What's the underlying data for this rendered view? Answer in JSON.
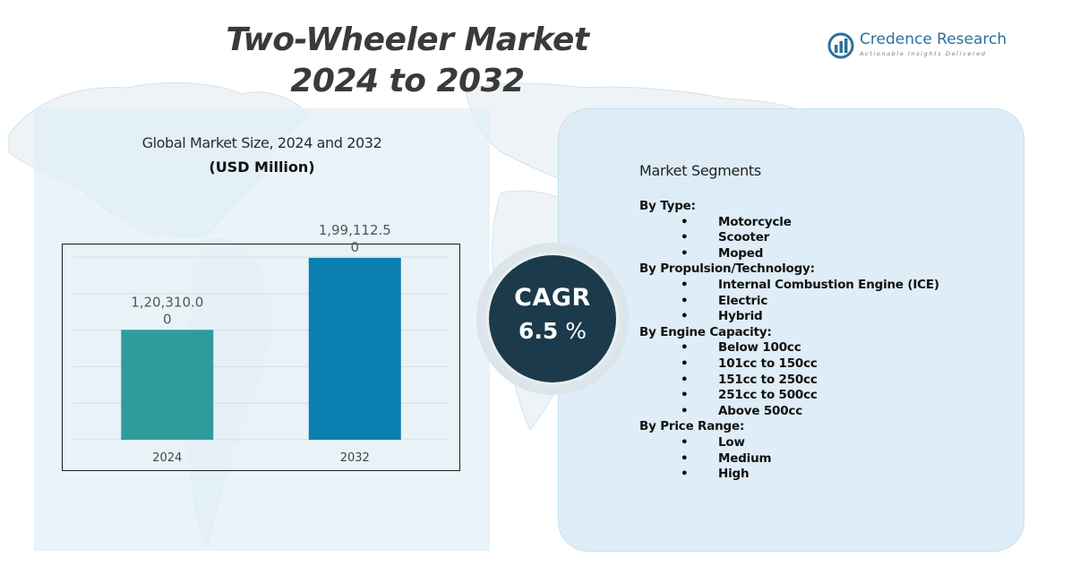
{
  "title_line1": "Two-Wheeler Market",
  "title_line2": "2024 to 2032",
  "brand": {
    "name": "Credence Research",
    "tagline": "Actionable Insights Delivered",
    "color": "#2f6f9b"
  },
  "chart_data": {
    "type": "bar",
    "title": "Global Market Size, 2024 and 2032",
    "unit": "(USD Million)",
    "categories": [
      "2024",
      "2032"
    ],
    "values": [
      120310.0,
      199112.5
    ],
    "value_labels": [
      "1,20,310.00",
      "1,99,112.50"
    ],
    "colors": [
      "#2e9c9c",
      "#0b7fb0"
    ],
    "ylim": [
      0,
      200000
    ],
    "grid": true,
    "xlabel": "",
    "ylabel": ""
  },
  "cagr": {
    "label": "CAGR",
    "value": "6.5",
    "suffix": "%"
  },
  "segments": {
    "heading": "Market Segments",
    "groups": [
      {
        "title": "By Type:",
        "items": [
          "Motorcycle",
          "Scooter",
          "Moped"
        ]
      },
      {
        "title": "By Propulsion/Technology:",
        "items": [
          "Internal Combustion Engine (ICE)",
          "Electric",
          "Hybrid"
        ]
      },
      {
        "title": "By Engine Capacity:",
        "items": [
          "Below 100cc",
          "101cc to 150cc",
          "151cc to 250cc",
          "251cc to 500cc",
          "Above 500cc"
        ]
      },
      {
        "title": "By Price Range:",
        "items": [
          "Low",
          "Medium",
          "High"
        ]
      }
    ]
  }
}
